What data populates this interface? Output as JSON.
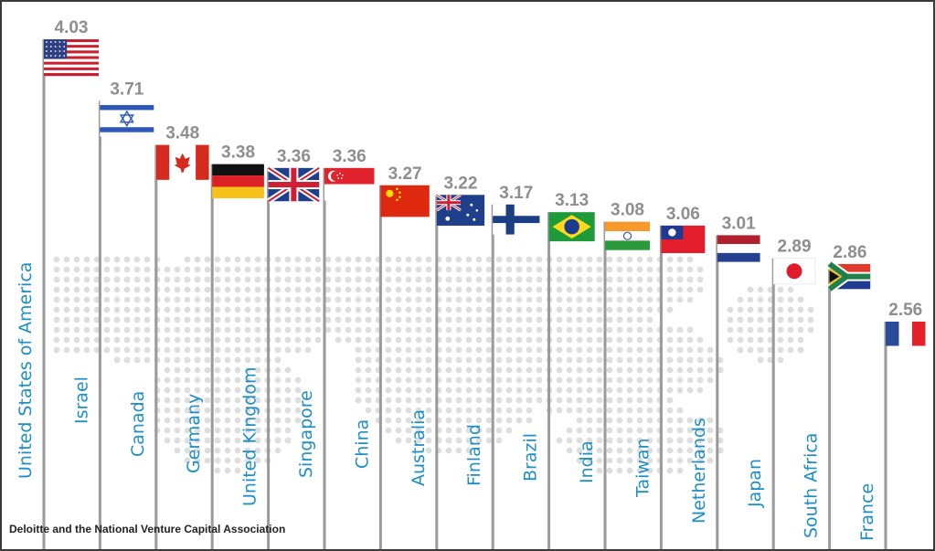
{
  "source": "Deloitte and the National Venture Capital Association",
  "chart_data": {
    "type": "bar",
    "categories": [
      "United States of America",
      "Israel",
      "Canada",
      "Germany",
      "United Kingdom",
      "Singapore",
      "China",
      "Australia",
      "Finland",
      "Brazil",
      "India",
      "Taiwan",
      "Netherlands",
      "Japan",
      "South Africa",
      "France"
    ],
    "values": [
      4.03,
      3.71,
      3.48,
      3.38,
      3.36,
      3.36,
      3.27,
      3.22,
      3.17,
      3.13,
      3.08,
      3.06,
      3.01,
      2.89,
      2.86,
      2.56
    ],
    "labels": [
      "4.03",
      "3.71",
      "3.48",
      "3.38",
      "3.36",
      "3.36",
      "3.27",
      "3.22",
      "3.17",
      "3.13",
      "3.08",
      "3.06",
      "3.01",
      "2.89",
      "2.86",
      "2.56"
    ],
    "flags": [
      "usa-flag-icon",
      "israel-flag-icon",
      "canada-flag-icon",
      "germany-flag-icon",
      "united-kingdom-flag-icon",
      "singapore-flag-icon",
      "china-flag-icon",
      "australia-flag-icon",
      "finland-flag-icon",
      "brazil-flag-icon",
      "india-flag-icon",
      "taiwan-flag-icon",
      "netherlands-flag-icon",
      "japan-flag-icon",
      "south-africa-flag-icon",
      "france-flag-icon"
    ],
    "title": "",
    "xlabel": "",
    "ylabel": "",
    "grid": false,
    "colors": {
      "value_text": "#8e8e8e",
      "country_text": "#1d8fc4",
      "pole": "#9a9a9a",
      "dots": "#dedede"
    }
  }
}
